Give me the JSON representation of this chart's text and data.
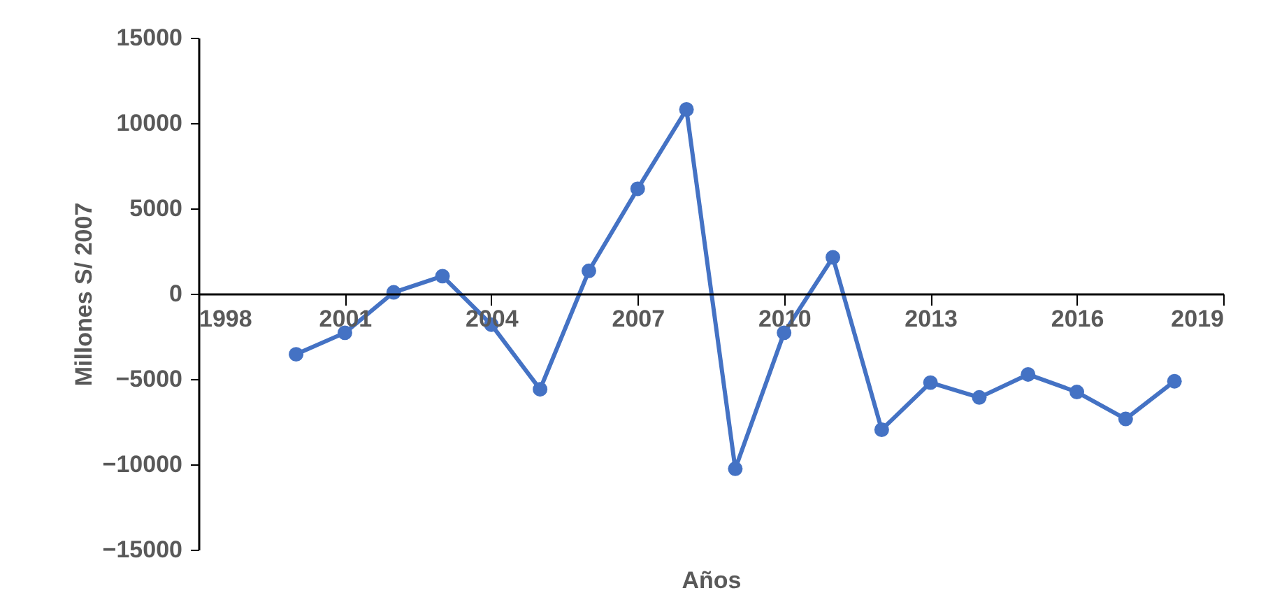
{
  "chart_data": {
    "type": "line",
    "xlabel": "Años",
    "ylabel": "Millones S/ 2007",
    "x": [
      2000,
      2001,
      2002,
      2003,
      2004,
      2005,
      2006,
      2007,
      2008,
      2009,
      2010,
      2011,
      2012,
      2013,
      2014,
      2015,
      2016,
      2017,
      2018
    ],
    "series": [
      {
        "color": "#4472c4",
        "values": [
          -3550,
          -2290,
          80,
          1030,
          -1810,
          -5600,
          1340,
          6150,
          10800,
          -10260,
          -2290,
          2130,
          -7970,
          -5210,
          -6080,
          -4730,
          -5760,
          -7340,
          -5130
        ]
      }
    ],
    "xlim": [
      1998,
      2019
    ],
    "xticks": [
      1998,
      2001,
      2004,
      2007,
      2010,
      2013,
      2016,
      2019
    ],
    "ylim": [
      -15000,
      15000
    ],
    "yticks": [
      -15000,
      -10000,
      -5000,
      0,
      5000,
      10000,
      15000
    ],
    "grid": false,
    "marker": "circle",
    "line_style": "solid"
  }
}
